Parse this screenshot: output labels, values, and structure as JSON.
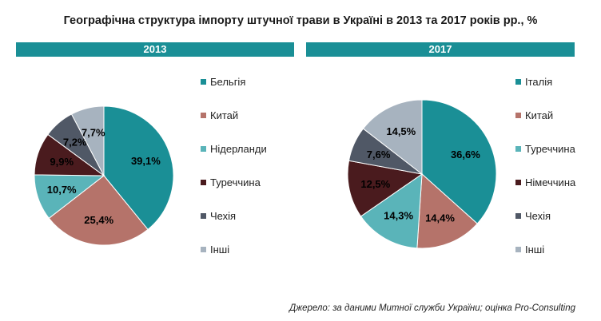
{
  "title": "Географічна структура імпорту штучної трави в Україні в 2013 та 2017 років рр., %",
  "source": "Джерело: за даними Митної служби України; оцінка Pro-Consulting",
  "chart_data": [
    {
      "type": "pie",
      "title": "2013",
      "start_angle_deg": 0,
      "direction": "clockwise",
      "label_color": "#000000",
      "slices": [
        {
          "name": "Бельгія",
          "value": 39.1,
          "label": "39,1%",
          "color": "#1a8f96"
        },
        {
          "name": "Китай",
          "value": 25.4,
          "label": "25,4%",
          "color": "#b5736a"
        },
        {
          "name": "Нідерланди",
          "value": 10.7,
          "label": "10,7%",
          "color": "#5ab4b9"
        },
        {
          "name": "Туреччина",
          "value": 9.9,
          "label": "9,9%",
          "color": "#4a1b1e"
        },
        {
          "name": "Чехія",
          "value": 7.2,
          "label": "7,2%",
          "color": "#505866"
        },
        {
          "name": "Інші",
          "value": 7.7,
          "label": "7,7%",
          "color": "#a7b3bf"
        }
      ]
    },
    {
      "type": "pie",
      "title": "2017",
      "start_angle_deg": 0,
      "direction": "clockwise",
      "label_color": "#000000",
      "slices": [
        {
          "name": "Італія",
          "value": 36.6,
          "label": "36,6%",
          "color": "#1a8f96"
        },
        {
          "name": "Китай",
          "value": 14.4,
          "label": "14,4%",
          "color": "#b5736a"
        },
        {
          "name": "Туреччина",
          "value": 14.3,
          "label": "14,3%",
          "color": "#5ab4b9"
        },
        {
          "name": "Німеччина",
          "value": 12.5,
          "label": "12,5%",
          "color": "#4a1b1e"
        },
        {
          "name": "Чехія",
          "value": 7.6,
          "label": "7,6%",
          "color": "#505866"
        },
        {
          "name": "Інші",
          "value": 14.5,
          "label": "14,5%",
          "color": "#a7b3bf"
        }
      ]
    }
  ]
}
